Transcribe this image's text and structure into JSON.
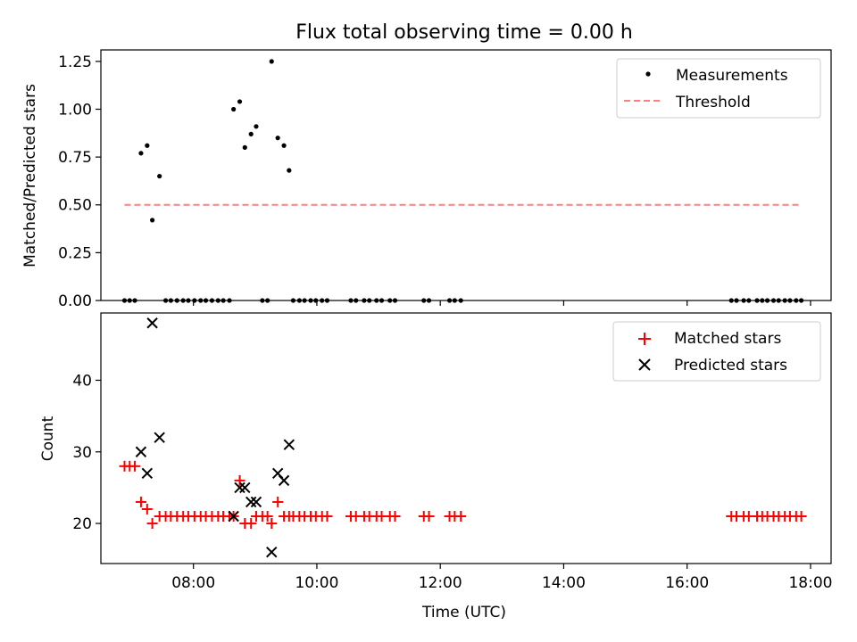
{
  "chart_data": [
    {
      "type": "scatter",
      "title": "Flux total observing time = 0.00 h",
      "xlabel": "",
      "ylabel": "Matched/Predicted stars",
      "xlim": [
        "06:30",
        "18:20"
      ],
      "ylim": [
        0,
        1.31
      ],
      "yticks": [
        0,
        0.25,
        0.5,
        0.75,
        1.0,
        1.25
      ],
      "ytick_labels": [
        "0.00",
        "0.25",
        "0.50",
        "0.75",
        "1.00",
        "1.25"
      ],
      "xticks": [
        "08:00",
        "10:00",
        "12:00",
        "14:00",
        "16:00",
        "18:00"
      ],
      "grid": false,
      "legend_position": "top-right",
      "legend": [
        "Measurements",
        "Threshold"
      ],
      "series": [
        {
          "name": "Measurements",
          "marker": "dot",
          "color": "#000000",
          "points": [
            [
              "06:53",
              0
            ],
            [
              "06:58",
              0
            ],
            [
              "07:03",
              0
            ],
            [
              "07:09",
              0.77
            ],
            [
              "07:15",
              0.81
            ],
            [
              "07:20",
              0.42
            ],
            [
              "07:27",
              0.65
            ],
            [
              "07:33",
              0
            ],
            [
              "07:38",
              0
            ],
            [
              "07:44",
              0
            ],
            [
              "07:50",
              0
            ],
            [
              "07:55",
              0
            ],
            [
              "08:01",
              0
            ],
            [
              "08:07",
              0
            ],
            [
              "08:12",
              0
            ],
            [
              "08:18",
              0
            ],
            [
              "08:24",
              0
            ],
            [
              "08:29",
              0
            ],
            [
              "08:35",
              0
            ],
            [
              "08:39",
              1.0
            ],
            [
              "08:45",
              1.04
            ],
            [
              "08:50",
              0.8
            ],
            [
              "08:56",
              0.87
            ],
            [
              "09:01",
              0.91
            ],
            [
              "09:07",
              0
            ],
            [
              "09:12",
              0
            ],
            [
              "09:16",
              1.25
            ],
            [
              "09:22",
              0.85
            ],
            [
              "09:28",
              0.81
            ],
            [
              "09:33",
              0.68
            ],
            [
              "09:37",
              0
            ],
            [
              "09:43",
              0
            ],
            [
              "09:48",
              0
            ],
            [
              "09:54",
              0
            ],
            [
              "09:59",
              0
            ],
            [
              "10:05",
              0
            ],
            [
              "10:10",
              0
            ],
            [
              "10:33",
              0
            ],
            [
              "10:38",
              0
            ],
            [
              "10:46",
              0
            ],
            [
              "10:51",
              0
            ],
            [
              "10:58",
              0
            ],
            [
              "11:03",
              0
            ],
            [
              "11:11",
              0
            ],
            [
              "11:16",
              0
            ],
            [
              "11:44",
              0
            ],
            [
              "11:49",
              0
            ],
            [
              "12:09",
              0
            ],
            [
              "12:14",
              0
            ],
            [
              "12:20",
              0
            ],
            [
              "16:43",
              0
            ],
            [
              "16:48",
              0
            ],
            [
              "16:55",
              0
            ],
            [
              "17:00",
              0
            ],
            [
              "17:08",
              0
            ],
            [
              "17:13",
              0
            ],
            [
              "17:18",
              0
            ],
            [
              "17:24",
              0
            ],
            [
              "17:29",
              0
            ],
            [
              "17:35",
              0
            ],
            [
              "17:40",
              0
            ],
            [
              "17:46",
              0
            ],
            [
              "17:51",
              0
            ]
          ]
        },
        {
          "name": "Threshold",
          "type": "line",
          "style": "dashed",
          "color": "#ff7f7f",
          "points": [
            [
              "06:53",
              0.5
            ],
            [
              "17:51",
              0.5
            ]
          ]
        }
      ]
    },
    {
      "type": "scatter",
      "title": "",
      "xlabel": "Time (UTC)",
      "ylabel": "Count",
      "xlim": [
        "06:30",
        "18:20"
      ],
      "ylim": [
        14.4,
        49.4
      ],
      "yticks": [
        20,
        30,
        40
      ],
      "ytick_labels": [
        "20",
        "30",
        "40"
      ],
      "xticks": [
        "08:00",
        "10:00",
        "12:00",
        "14:00",
        "16:00",
        "18:00"
      ],
      "xtick_labels": [
        "08:00",
        "10:00",
        "12:00",
        "14:00",
        "16:00",
        "18:00"
      ],
      "grid": false,
      "legend_position": "top-right",
      "legend": [
        "Matched stars",
        "Predicted stars"
      ],
      "series": [
        {
          "name": "Matched stars",
          "marker": "plus",
          "color": "#ff0000",
          "points": [
            [
              "06:53",
              28
            ],
            [
              "06:58",
              28
            ],
            [
              "07:03",
              28
            ],
            [
              "07:09",
              23
            ],
            [
              "07:15",
              22
            ],
            [
              "07:20",
              20
            ],
            [
              "07:27",
              21
            ],
            [
              "07:33",
              21
            ],
            [
              "07:38",
              21
            ],
            [
              "07:44",
              21
            ],
            [
              "07:50",
              21
            ],
            [
              "07:55",
              21
            ],
            [
              "08:01",
              21
            ],
            [
              "08:07",
              21
            ],
            [
              "08:12",
              21
            ],
            [
              "08:18",
              21
            ],
            [
              "08:24",
              21
            ],
            [
              "08:29",
              21
            ],
            [
              "08:35",
              21
            ],
            [
              "08:39",
              21
            ],
            [
              "08:45",
              26
            ],
            [
              "08:50",
              20
            ],
            [
              "08:56",
              20
            ],
            [
              "09:01",
              21
            ],
            [
              "09:07",
              21
            ],
            [
              "09:12",
              21
            ],
            [
              "09:16",
              20
            ],
            [
              "09:22",
              23
            ],
            [
              "09:28",
              21
            ],
            [
              "09:33",
              21
            ],
            [
              "09:37",
              21
            ],
            [
              "09:43",
              21
            ],
            [
              "09:48",
              21
            ],
            [
              "09:54",
              21
            ],
            [
              "09:59",
              21
            ],
            [
              "10:05",
              21
            ],
            [
              "10:10",
              21
            ],
            [
              "10:33",
              21
            ],
            [
              "10:38",
              21
            ],
            [
              "10:46",
              21
            ],
            [
              "10:51",
              21
            ],
            [
              "10:58",
              21
            ],
            [
              "11:03",
              21
            ],
            [
              "11:11",
              21
            ],
            [
              "11:16",
              21
            ],
            [
              "11:44",
              21
            ],
            [
              "11:49",
              21
            ],
            [
              "12:09",
              21
            ],
            [
              "12:14",
              21
            ],
            [
              "12:20",
              21
            ],
            [
              "16:43",
              21
            ],
            [
              "16:48",
              21
            ],
            [
              "16:55",
              21
            ],
            [
              "17:00",
              21
            ],
            [
              "17:08",
              21
            ],
            [
              "17:13",
              21
            ],
            [
              "17:18",
              21
            ],
            [
              "17:24",
              21
            ],
            [
              "17:29",
              21
            ],
            [
              "17:35",
              21
            ],
            [
              "17:40",
              21
            ],
            [
              "17:46",
              21
            ],
            [
              "17:51",
              21
            ]
          ]
        },
        {
          "name": "Predicted stars",
          "marker": "x",
          "color": "#000000",
          "points": [
            [
              "07:09",
              30
            ],
            [
              "07:15",
              27
            ],
            [
              "07:20",
              48
            ],
            [
              "07:27",
              32
            ],
            [
              "08:39",
              21
            ],
            [
              "08:45",
              25
            ],
            [
              "08:50",
              25
            ],
            [
              "08:56",
              23
            ],
            [
              "09:01",
              23
            ],
            [
              "09:16",
              16
            ],
            [
              "09:22",
              27
            ],
            [
              "09:28",
              26
            ],
            [
              "09:33",
              31
            ]
          ]
        }
      ]
    }
  ]
}
